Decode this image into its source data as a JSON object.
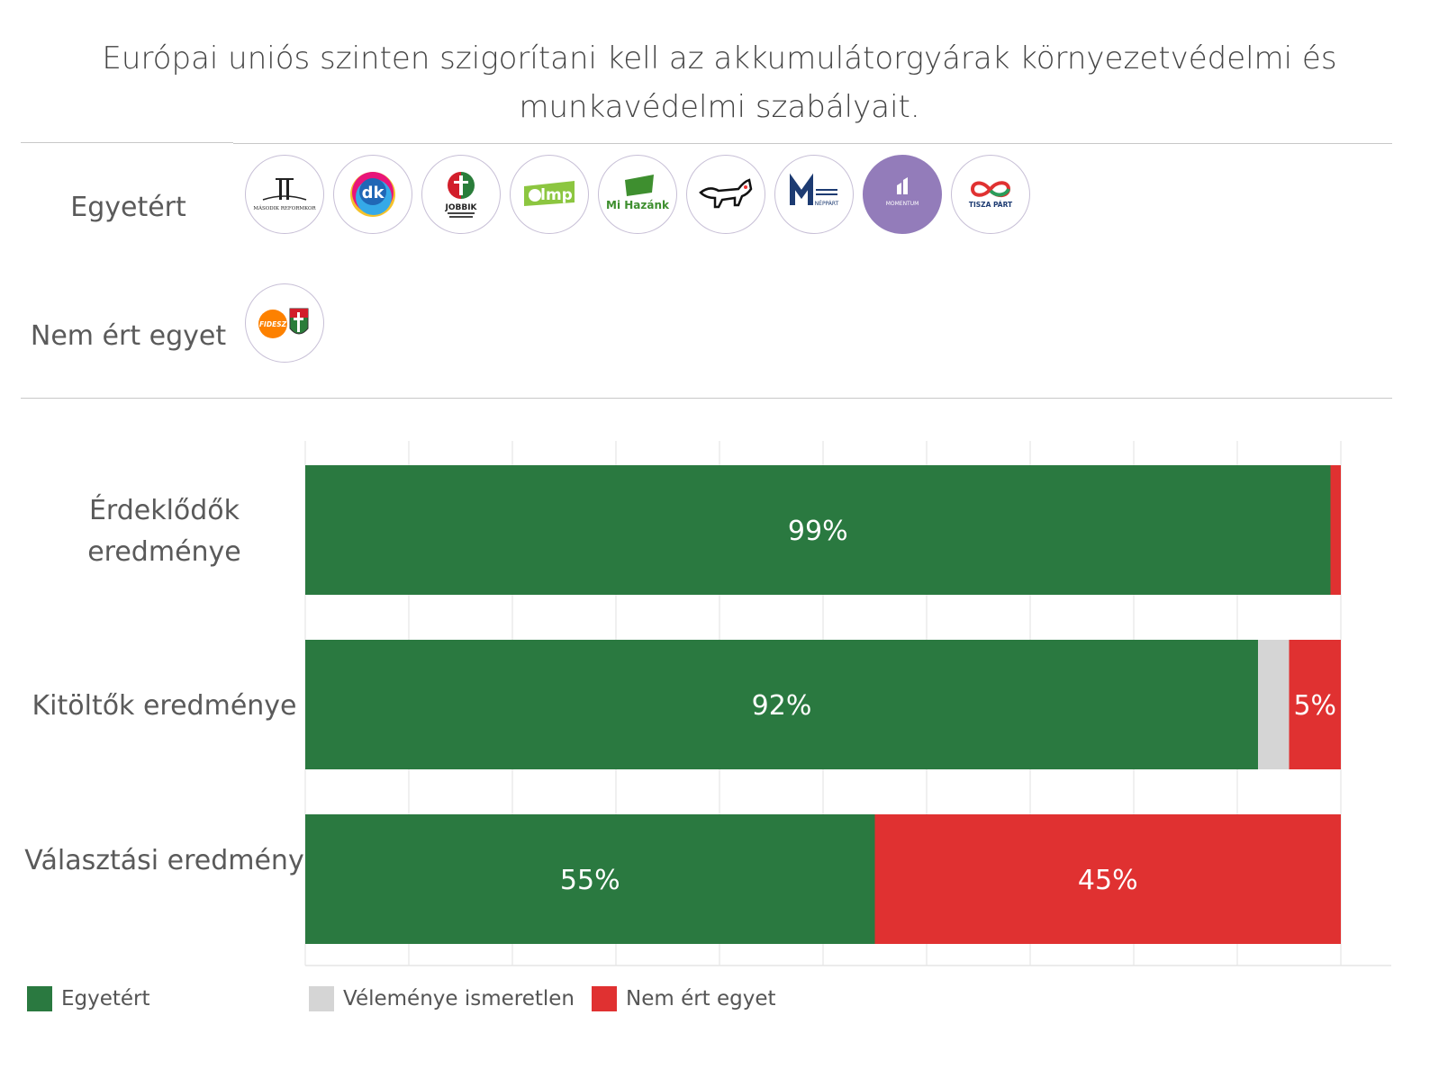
{
  "title_line1": "Európai uniós szinten szigorítani kell az akkumulátorgyárak környezetvédelmi és",
  "title_line2": "munkavédelmi szabályait.",
  "positions": {
    "agree_label": "Egyetért",
    "disagree_label": "Nem ért egyet",
    "agree_parties": [
      {
        "icon": "masodik-reformkor-logo",
        "text": "MÁSODIK REFORMKOR"
      },
      {
        "icon": "dk-logo",
        "text": "dk"
      },
      {
        "icon": "jobbik-logo",
        "text": "JOBBIK"
      },
      {
        "icon": "lmp-logo",
        "text": "lmp"
      },
      {
        "icon": "mi-hazank-logo",
        "text": "Mi Hazánk"
      },
      {
        "icon": "mkkp-dog-logo",
        "text": ""
      },
      {
        "icon": "mmm-logo",
        "text": "NÉPPÁRT"
      },
      {
        "icon": "momentum-logo",
        "text": "MOMENTUM"
      },
      {
        "icon": "tisza-logo",
        "text": "TISZA PÁRT"
      }
    ],
    "disagree_parties": [
      {
        "icon": "fidesz-kdnp-logo",
        "text": "FIDESZ"
      }
    ]
  },
  "colors": {
    "agree": "#2a7940",
    "unknown": "#d5d5d5",
    "disagree": "#e03131"
  },
  "chart_data": {
    "type": "bar",
    "orientation": "horizontal",
    "stacked": true,
    "categories": [
      "Érdeklődők eredménye",
      "Kitöltők eredménye",
      "Választási eredmény"
    ],
    "series": [
      {
        "name": "Egyetért",
        "values": [
          99,
          92,
          55
        ],
        "labels": [
          "99%",
          "92%",
          "55%"
        ]
      },
      {
        "name": "Véleménye ismeretlen",
        "values": [
          0,
          3,
          0
        ],
        "labels": [
          "",
          "",
          ""
        ]
      },
      {
        "name": "Nem ért egyet",
        "values": [
          1,
          5,
          45
        ],
        "labels": [
          "",
          "5%",
          "45%"
        ]
      }
    ],
    "xlim": [
      0,
      100
    ],
    "grid": true,
    "legend_position": "bottom"
  },
  "legend": [
    {
      "label": "Egyetért",
      "color": "#2a7940"
    },
    {
      "label": "Véleménye ismeretlen",
      "color": "#d5d5d5"
    },
    {
      "label": "Nem ért egyet",
      "color": "#e03131"
    }
  ]
}
